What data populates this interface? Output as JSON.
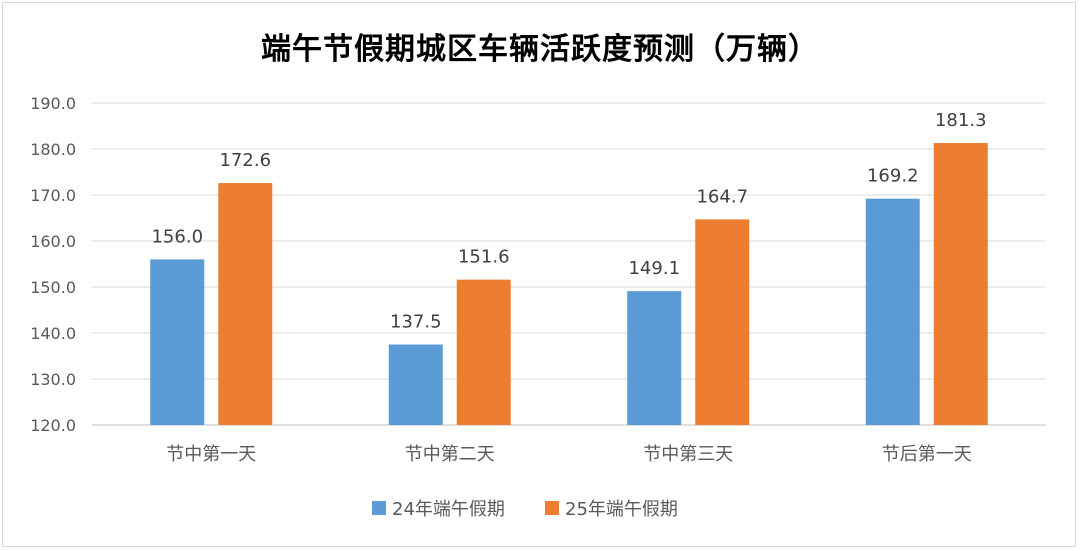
{
  "chart_data": {
    "type": "bar",
    "title": "端午节假期城区车辆活跃度预测（万辆）",
    "categories": [
      "节中第一天",
      "节中第二天",
      "节中第三天",
      "节后第一天"
    ],
    "series": [
      {
        "name": "24年端午假期",
        "values": [
          156.0,
          137.5,
          149.1,
          169.2
        ],
        "color": "#5b9bd5"
      },
      {
        "name": "25年端午假期",
        "values": [
          172.6,
          151.6,
          164.7,
          181.3
        ],
        "color": "#ed7d31"
      }
    ],
    "ylim": [
      120,
      190
    ],
    "yticks": [
      "120.0",
      "130.0",
      "140.0",
      "150.0",
      "160.0",
      "170.0",
      "180.0",
      "190.0"
    ],
    "data_labels": [
      [
        "156.0",
        "137.5",
        "149.1",
        "169.2"
      ],
      [
        "172.6",
        "151.6",
        "164.7",
        "181.3"
      ]
    ],
    "grid": true,
    "legend": "bottom"
  }
}
